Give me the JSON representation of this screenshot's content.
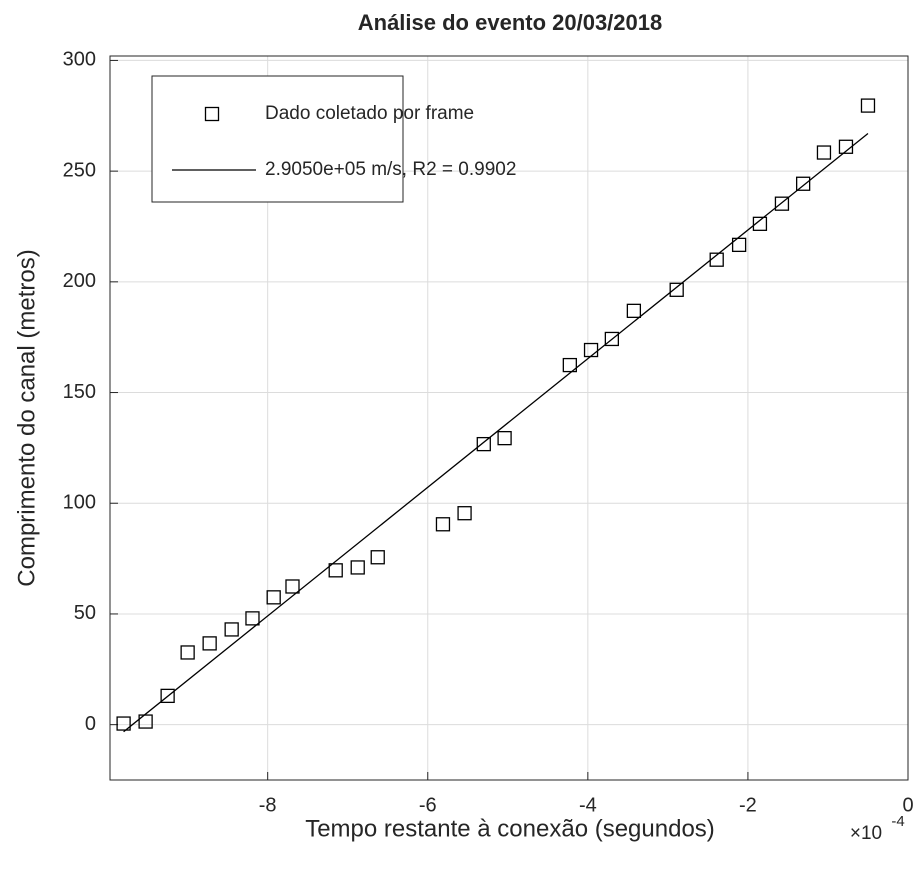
{
  "chart_data": {
    "type": "scatter",
    "title": "Análise do evento 20/03/2018",
    "xlabel": "Tempo restante à conexão (segundos)",
    "ylabel": "Comprimento do canal (metros)",
    "x_multiplier": {
      "base": "×10",
      "exponent": "-4"
    },
    "xlim": [
      -9.97,
      0
    ],
    "ylim": [
      -25,
      302
    ],
    "xticks": [
      -8,
      -6,
      -4,
      -2,
      0
    ],
    "yticks": [
      0,
      50,
      100,
      150,
      200,
      250,
      300
    ],
    "grid": true,
    "legend": "upper left",
    "series": [
      {
        "name": "Dado coletado por frame",
        "color": "#000000",
        "marker": "square",
        "x": [
          -9.8,
          -9.525,
          -9.25,
          -9.0,
          -8.725,
          -8.45,
          -8.19,
          -7.925,
          -7.69,
          -7.15,
          -6.875,
          -6.625,
          -5.81,
          -5.54,
          -5.3,
          -5.04,
          -4.225,
          -3.96,
          -3.7,
          -3.425,
          -2.89,
          -2.39,
          -2.11,
          -1.85,
          -1.575,
          -1.31,
          -1.05,
          -0.775,
          -0.5
        ],
        "values": [
          0.5,
          1.4,
          13,
          32.6,
          36.7,
          43,
          48,
          57.5,
          62.4,
          69.7,
          71,
          75.6,
          90.5,
          95.5,
          126.7,
          129.4,
          162.4,
          169.2,
          174.2,
          186.9,
          196.4,
          210,
          216.7,
          226.2,
          235.3,
          244.3,
          258.4,
          261,
          279.6
        ]
      },
      {
        "name": "2.9050e+05 m/s, R2 = 0.9902",
        "color": "#000000",
        "marker": "line",
        "x": [
          -9.8,
          -0.5
        ],
        "values": [
          -3.2,
          267
        ]
      }
    ]
  }
}
